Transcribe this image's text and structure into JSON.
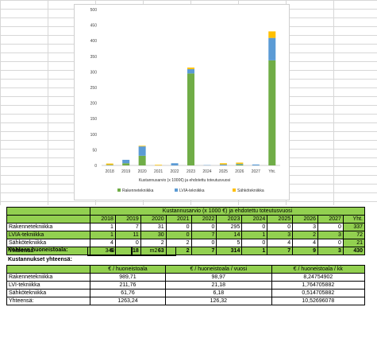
{
  "chart_data": {
    "type": "bar",
    "stacked": true,
    "categories": [
      "2018",
      "2019",
      "2020",
      "2021",
      "2022",
      "2023",
      "2024",
      "2025",
      "2026",
      "2027",
      "Yht."
    ],
    "series": [
      {
        "name": "Rakennetekniikka",
        "color": "#70ad47",
        "values": [
          1,
          7,
          31,
          0,
          0,
          295,
          0,
          0,
          3,
          0,
          337
        ]
      },
      {
        "name": "LVIA-tekniikka",
        "color": "#5b9bd5",
        "values": [
          1,
          11,
          30,
          0,
          7,
          14,
          1,
          3,
          2,
          3,
          72
        ]
      },
      {
        "name": "Sähkötekniikka",
        "color": "#ffc000",
        "values": [
          4,
          0,
          2,
          2,
          0,
          5,
          0,
          4,
          4,
          0,
          21
        ]
      }
    ],
    "xlabel": "Kustannusarvio (x 1000€) ja ehdotettu toteutusvuosi",
    "ylim": [
      0,
      500
    ],
    "yticks": [
      0,
      50,
      100,
      150,
      200,
      250,
      300,
      350,
      400,
      450,
      500
    ],
    "legend": "bottom",
    "grid": false
  },
  "summary_table": {
    "title": "Kustannusarvio (x 1000 €) ja ehdotettu toteutusvuosi",
    "years": [
      "2018",
      "2019",
      "2020",
      "2021",
      "2022",
      "2023",
      "2024",
      "2025",
      "2026",
      "2027",
      "Yht."
    ],
    "rows": [
      {
        "label": "Rakennetekniikka",
        "values": [
          "1",
          "7",
          "31",
          "0",
          "0",
          "295",
          "0",
          "0",
          "3",
          "0",
          "337"
        ]
      },
      {
        "label": "LVIA-tekniikka",
        "values": [
          "1",
          "11",
          "30",
          "0",
          "7",
          "14",
          "1",
          "3",
          "2",
          "3",
          "72"
        ]
      },
      {
        "label": "Sähkötekniikka",
        "values": [
          "4",
          "0",
          "2",
          "2",
          "0",
          "5",
          "0",
          "4",
          "4",
          "0",
          "21"
        ]
      }
    ],
    "total": {
      "label": "Yhteensä",
      "values": [
        "6",
        "18",
        "63",
        "2",
        "7",
        "314",
        "1",
        "7",
        "9",
        "3",
        "430"
      ]
    }
  },
  "area": {
    "label": "Kohteen huoneistoala:",
    "value": "340",
    "unit": "m2"
  },
  "costs": {
    "title": "Kustannukset yhteensä:",
    "headers": [
      "€ / huoneistoala",
      "€ / huoneistoala / vuosi",
      "€ / huoneistoala / kk"
    ],
    "rows": [
      {
        "label": "Rakennetekniikka",
        "values": [
          "989,71",
          "98,97",
          "8,24754902"
        ]
      },
      {
        "label": "LVI-tekniikka",
        "values": [
          "211,76",
          "21,18",
          "1,764705882"
        ]
      },
      {
        "label": "Sähkötekniikka",
        "values": [
          "61,76",
          "6,18",
          "0,514705882"
        ]
      },
      {
        "label": "Yhteensä:",
        "values": [
          "1263,24",
          "126,32",
          "10,52696078"
        ]
      }
    ]
  }
}
